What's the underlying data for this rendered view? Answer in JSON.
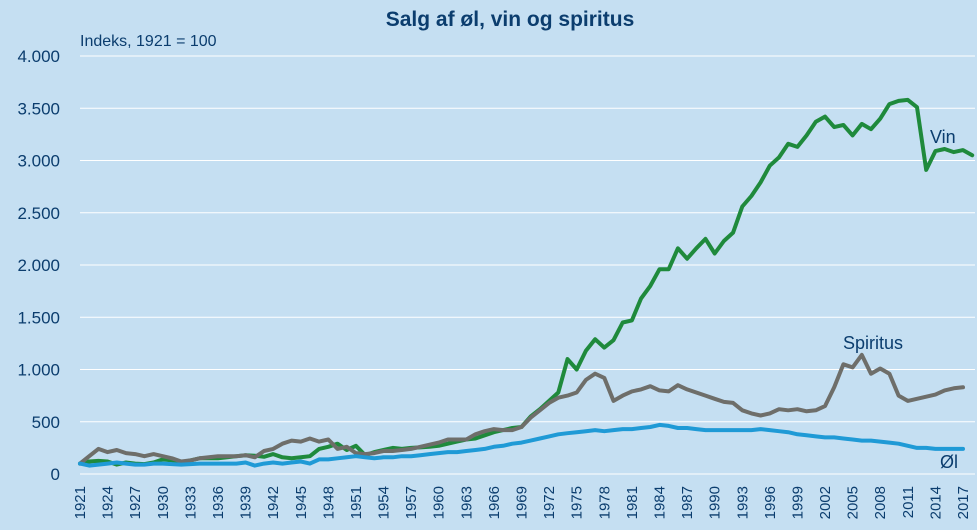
{
  "chart_data": {
    "type": "line",
    "title": "Salg af øl, vin og spiritus",
    "subtitle": "Indeks, 1921 = 100",
    "xlabel": "",
    "ylabel": "",
    "ylim": [
      0,
      4000
    ],
    "ytick_labels": [
      "0",
      "500",
      "1.000",
      "1.500",
      "2.000",
      "2.500",
      "3.000",
      "3.500",
      "4.000"
    ],
    "ytick_values": [
      0,
      500,
      1000,
      1500,
      2000,
      2500,
      3000,
      3500,
      4000
    ],
    "xlim": [
      1921,
      2017
    ],
    "xtick_labels": [
      "1921",
      "1924",
      "1927",
      "1930",
      "1933",
      "1936",
      "1939",
      "1942",
      "1945",
      "1948",
      "1951",
      "1954",
      "1957",
      "1960",
      "1963",
      "1966",
      "1969",
      "1972",
      "1975",
      "1978",
      "1981",
      "1984",
      "1987",
      "1990",
      "1993",
      "1996",
      "1999",
      "2002",
      "2005",
      "2008",
      "2011",
      "2014",
      "2017"
    ],
    "grid": "horizontal",
    "legend": "none",
    "series": [
      {
        "name": "Vin",
        "color": "#1f8a3c",
        "points": [
          [
            1921,
            100
          ],
          [
            1922,
            120
          ],
          [
            1923,
            125
          ],
          [
            1924,
            120
          ],
          [
            1925,
            90
          ],
          [
            1926,
            110
          ],
          [
            1927,
            100
          ],
          [
            1928,
            95
          ],
          [
            1929,
            110
          ],
          [
            1930,
            140
          ],
          [
            1931,
            130
          ],
          [
            1932,
            110
          ],
          [
            1933,
            130
          ],
          [
            1934,
            150
          ],
          [
            1935,
            150
          ],
          [
            1936,
            150
          ],
          [
            1937,
            160
          ],
          [
            1938,
            170
          ],
          [
            1939,
            180
          ],
          [
            1940,
            175
          ],
          [
            1941,
            165
          ],
          [
            1942,
            190
          ],
          [
            1943,
            160
          ],
          [
            1944,
            150
          ],
          [
            1945,
            160
          ],
          [
            1946,
            170
          ],
          [
            1947,
            240
          ],
          [
            1948,
            260
          ],
          [
            1949,
            290
          ],
          [
            1950,
            230
          ],
          [
            1951,
            270
          ],
          [
            1952,
            180
          ],
          [
            1953,
            210
          ],
          [
            1954,
            230
          ],
          [
            1955,
            250
          ],
          [
            1956,
            240
          ],
          [
            1957,
            250
          ],
          [
            1958,
            255
          ],
          [
            1959,
            260
          ],
          [
            1960,
            270
          ],
          [
            1961,
            290
          ],
          [
            1962,
            310
          ],
          [
            1963,
            330
          ],
          [
            1964,
            340
          ],
          [
            1965,
            370
          ],
          [
            1966,
            400
          ],
          [
            1967,
            420
          ],
          [
            1968,
            440
          ],
          [
            1969,
            450
          ],
          [
            1970,
            550
          ],
          [
            1971,
            620
          ],
          [
            1972,
            700
          ],
          [
            1973,
            780
          ],
          [
            1974,
            1100
          ],
          [
            1975,
            1000
          ],
          [
            1976,
            1180
          ],
          [
            1977,
            1290
          ],
          [
            1978,
            1210
          ],
          [
            1979,
            1280
          ],
          [
            1980,
            1450
          ],
          [
            1981,
            1470
          ],
          [
            1982,
            1680
          ],
          [
            1983,
            1800
          ],
          [
            1984,
            1960
          ],
          [
            1985,
            1960
          ],
          [
            1986,
            2160
          ],
          [
            1987,
            2060
          ],
          [
            1988,
            2160
          ],
          [
            1989,
            2250
          ],
          [
            1990,
            2110
          ],
          [
            1991,
            2230
          ],
          [
            1992,
            2310
          ],
          [
            1993,
            2560
          ],
          [
            1994,
            2660
          ],
          [
            1995,
            2790
          ],
          [
            1996,
            2950
          ],
          [
            1997,
            3030
          ],
          [
            1998,
            3160
          ],
          [
            1999,
            3130
          ],
          [
            2000,
            3240
          ],
          [
            2001,
            3370
          ],
          [
            2002,
            3420
          ],
          [
            2003,
            3320
          ],
          [
            2004,
            3340
          ],
          [
            2005,
            3240
          ],
          [
            2006,
            3350
          ],
          [
            2007,
            3300
          ],
          [
            2008,
            3400
          ],
          [
            2009,
            3540
          ],
          [
            2010,
            3570
          ],
          [
            2011,
            3580
          ],
          [
            2012,
            3510
          ],
          [
            2013,
            2910
          ],
          [
            2014,
            3090
          ],
          [
            2015,
            3110
          ],
          [
            2016,
            3080
          ],
          [
            2017,
            3100
          ],
          [
            2018,
            3050
          ]
        ]
      },
      {
        "name": "Spiritus",
        "color": "#6e6e6a",
        "points": [
          [
            1921,
            100
          ],
          [
            1922,
            170
          ],
          [
            1923,
            240
          ],
          [
            1924,
            210
          ],
          [
            1925,
            230
          ],
          [
            1926,
            200
          ],
          [
            1927,
            190
          ],
          [
            1928,
            170
          ],
          [
            1929,
            190
          ],
          [
            1930,
            170
          ],
          [
            1931,
            150
          ],
          [
            1932,
            120
          ],
          [
            1933,
            130
          ],
          [
            1934,
            150
          ],
          [
            1935,
            160
          ],
          [
            1936,
            170
          ],
          [
            1937,
            170
          ],
          [
            1938,
            170
          ],
          [
            1939,
            180
          ],
          [
            1940,
            160
          ],
          [
            1941,
            220
          ],
          [
            1942,
            240
          ],
          [
            1943,
            290
          ],
          [
            1944,
            320
          ],
          [
            1945,
            310
          ],
          [
            1946,
            340
          ],
          [
            1947,
            310
          ],
          [
            1948,
            330
          ],
          [
            1949,
            240
          ],
          [
            1950,
            260
          ],
          [
            1951,
            200
          ],
          [
            1952,
            190
          ],
          [
            1953,
            200
          ],
          [
            1954,
            220
          ],
          [
            1955,
            220
          ],
          [
            1956,
            230
          ],
          [
            1957,
            240
          ],
          [
            1958,
            260
          ],
          [
            1959,
            280
          ],
          [
            1960,
            300
          ],
          [
            1961,
            330
          ],
          [
            1962,
            330
          ],
          [
            1963,
            330
          ],
          [
            1964,
            380
          ],
          [
            1965,
            410
          ],
          [
            1966,
            430
          ],
          [
            1967,
            420
          ],
          [
            1968,
            420
          ],
          [
            1969,
            450
          ],
          [
            1970,
            540
          ],
          [
            1971,
            610
          ],
          [
            1972,
            680
          ],
          [
            1973,
            730
          ],
          [
            1974,
            750
          ],
          [
            1975,
            780
          ],
          [
            1976,
            900
          ],
          [
            1977,
            960
          ],
          [
            1978,
            920
          ],
          [
            1979,
            700
          ],
          [
            1980,
            750
          ],
          [
            1981,
            790
          ],
          [
            1982,
            810
          ],
          [
            1983,
            840
          ],
          [
            1984,
            800
          ],
          [
            1985,
            790
          ],
          [
            1986,
            850
          ],
          [
            1987,
            810
          ],
          [
            1988,
            780
          ],
          [
            1989,
            750
          ],
          [
            1990,
            720
          ],
          [
            1991,
            690
          ],
          [
            1992,
            680
          ],
          [
            1993,
            610
          ],
          [
            1994,
            580
          ],
          [
            1995,
            560
          ],
          [
            1996,
            580
          ],
          [
            1997,
            620
          ],
          [
            1998,
            610
          ],
          [
            1999,
            620
          ],
          [
            2000,
            600
          ],
          [
            2001,
            610
          ],
          [
            2002,
            650
          ],
          [
            2003,
            830
          ],
          [
            2004,
            1050
          ],
          [
            2005,
            1020
          ],
          [
            2006,
            1140
          ],
          [
            2007,
            960
          ],
          [
            2008,
            1010
          ],
          [
            2009,
            960
          ],
          [
            2010,
            750
          ],
          [
            2011,
            700
          ],
          [
            2012,
            720
          ],
          [
            2013,
            740
          ],
          [
            2014,
            760
          ],
          [
            2015,
            800
          ],
          [
            2016,
            820
          ],
          [
            2017,
            830
          ]
        ]
      },
      {
        "name": "Øl",
        "color": "#1f9ad6",
        "points": [
          [
            1921,
            100
          ],
          [
            1922,
            80
          ],
          [
            1923,
            90
          ],
          [
            1924,
            100
          ],
          [
            1925,
            110
          ],
          [
            1926,
            100
          ],
          [
            1927,
            90
          ],
          [
            1928,
            90
          ],
          [
            1929,
            100
          ],
          [
            1930,
            100
          ],
          [
            1931,
            95
          ],
          [
            1932,
            90
          ],
          [
            1933,
            95
          ],
          [
            1934,
            100
          ],
          [
            1935,
            100
          ],
          [
            1936,
            100
          ],
          [
            1937,
            100
          ],
          [
            1938,
            100
          ],
          [
            1939,
            110
          ],
          [
            1940,
            80
          ],
          [
            1941,
            100
          ],
          [
            1942,
            110
          ],
          [
            1943,
            100
          ],
          [
            1944,
            110
          ],
          [
            1945,
            120
          ],
          [
            1946,
            100
          ],
          [
            1947,
            140
          ],
          [
            1948,
            140
          ],
          [
            1949,
            150
          ],
          [
            1950,
            160
          ],
          [
            1951,
            170
          ],
          [
            1952,
            160
          ],
          [
            1953,
            150
          ],
          [
            1954,
            160
          ],
          [
            1955,
            160
          ],
          [
            1956,
            170
          ],
          [
            1957,
            170
          ],
          [
            1958,
            180
          ],
          [
            1959,
            190
          ],
          [
            1960,
            200
          ],
          [
            1961,
            210
          ],
          [
            1962,
            210
          ],
          [
            1963,
            220
          ],
          [
            1964,
            230
          ],
          [
            1965,
            240
          ],
          [
            1966,
            260
          ],
          [
            1967,
            270
          ],
          [
            1968,
            290
          ],
          [
            1969,
            300
          ],
          [
            1970,
            320
          ],
          [
            1971,
            340
          ],
          [
            1972,
            360
          ],
          [
            1973,
            380
          ],
          [
            1974,
            390
          ],
          [
            1975,
            400
          ],
          [
            1976,
            410
          ],
          [
            1977,
            420
          ],
          [
            1978,
            410
          ],
          [
            1979,
            420
          ],
          [
            1980,
            430
          ],
          [
            1981,
            430
          ],
          [
            1982,
            440
          ],
          [
            1983,
            450
          ],
          [
            1984,
            470
          ],
          [
            1985,
            460
          ],
          [
            1986,
            440
          ],
          [
            1987,
            440
          ],
          [
            1988,
            430
          ],
          [
            1989,
            420
          ],
          [
            1990,
            420
          ],
          [
            1991,
            420
          ],
          [
            1992,
            420
          ],
          [
            1993,
            420
          ],
          [
            1994,
            420
          ],
          [
            1995,
            430
          ],
          [
            1996,
            420
          ],
          [
            1997,
            410
          ],
          [
            1998,
            400
          ],
          [
            1999,
            380
          ],
          [
            2000,
            370
          ],
          [
            2001,
            360
          ],
          [
            2002,
            350
          ],
          [
            2003,
            350
          ],
          [
            2004,
            340
          ],
          [
            2005,
            330
          ],
          [
            2006,
            320
          ],
          [
            2007,
            320
          ],
          [
            2008,
            310
          ],
          [
            2009,
            300
          ],
          [
            2010,
            290
          ],
          [
            2011,
            270
          ],
          [
            2012,
            250
          ],
          [
            2013,
            250
          ],
          [
            2014,
            240
          ],
          [
            2015,
            240
          ],
          [
            2016,
            240
          ],
          [
            2017,
            240
          ]
        ]
      }
    ]
  }
}
